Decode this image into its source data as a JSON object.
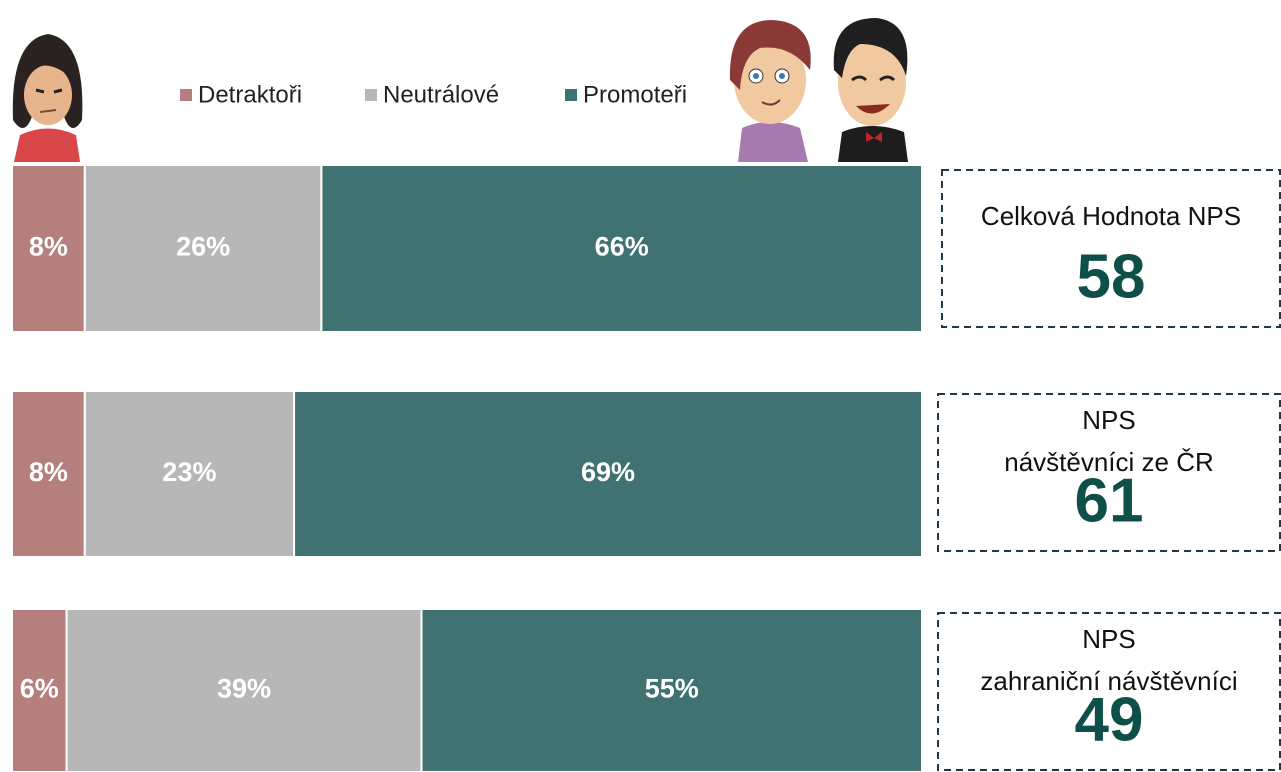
{
  "chart_data": {
    "type": "stacked-barh",
    "series": [
      {
        "name": "Detraktoři",
        "color": "#b57f7d",
        "values": [
          8,
          8,
          6
        ],
        "value_labels": [
          "8%",
          "8%",
          "6%"
        ]
      },
      {
        "name": "Neutrálové",
        "color": "#b7b7b7",
        "values": [
          26,
          23,
          39
        ],
        "value_labels": [
          "26%",
          "23%",
          "39%"
        ]
      },
      {
        "name": "Promoteři",
        "color": "#3f7270",
        "values": [
          66,
          69,
          55
        ],
        "value_labels": [
          "66%",
          "69%",
          "55%"
        ]
      }
    ],
    "nps_boxes": [
      {
        "label": [
          "Celková Hodnota NPS"
        ],
        "value": 58
      },
      {
        "label": [
          "NPS",
          "návštěvníci ze ČR"
        ],
        "value": 61
      },
      {
        "label": [
          "NPS",
          "zahraniční návštěvníci"
        ],
        "value": 49
      }
    ]
  }
}
